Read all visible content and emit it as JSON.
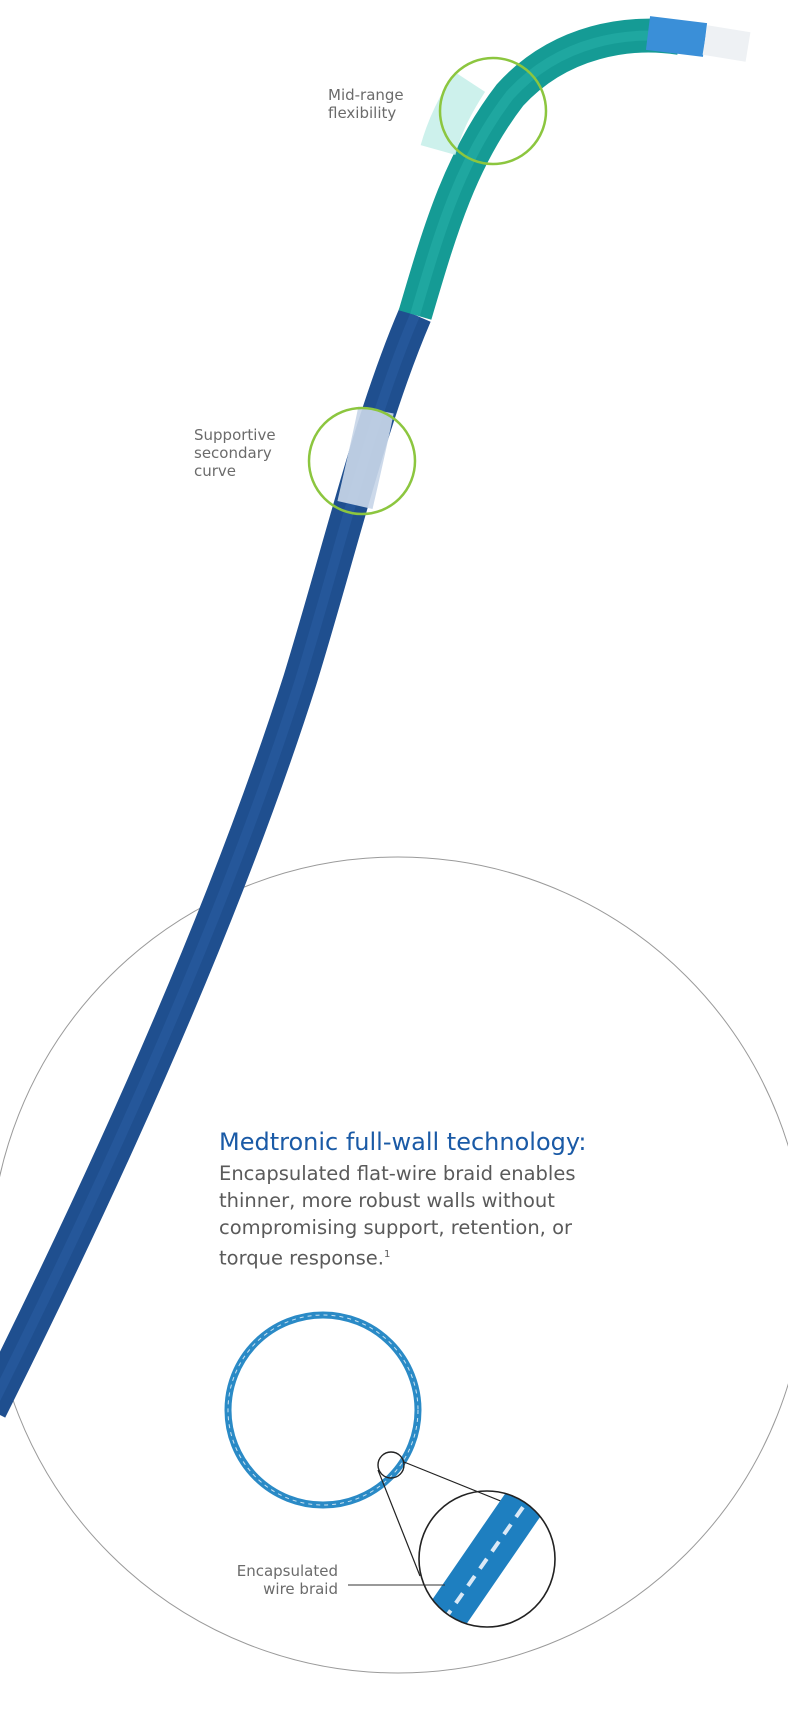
{
  "colors": {
    "catheter_blue": "#1f4f8f",
    "catheter_teal": "#159b95",
    "highlight_ring": "#8cc63f",
    "heading_blue": "#1a5aa6",
    "braid_blue": "#2a8ac6"
  },
  "callouts": {
    "mid_range": [
      "Mid-range",
      "flexibility"
    ],
    "supportive": [
      "Supportive",
      "secondary",
      "curve"
    ],
    "braid": [
      "Encapsulated",
      "wire braid"
    ]
  },
  "technology": {
    "heading": "Medtronic full-wall technology:",
    "body": "Encapsulated flat-wire braid enables thinner, more robust walls without compromising support, retention, or torque response.",
    "footnote": "1"
  }
}
